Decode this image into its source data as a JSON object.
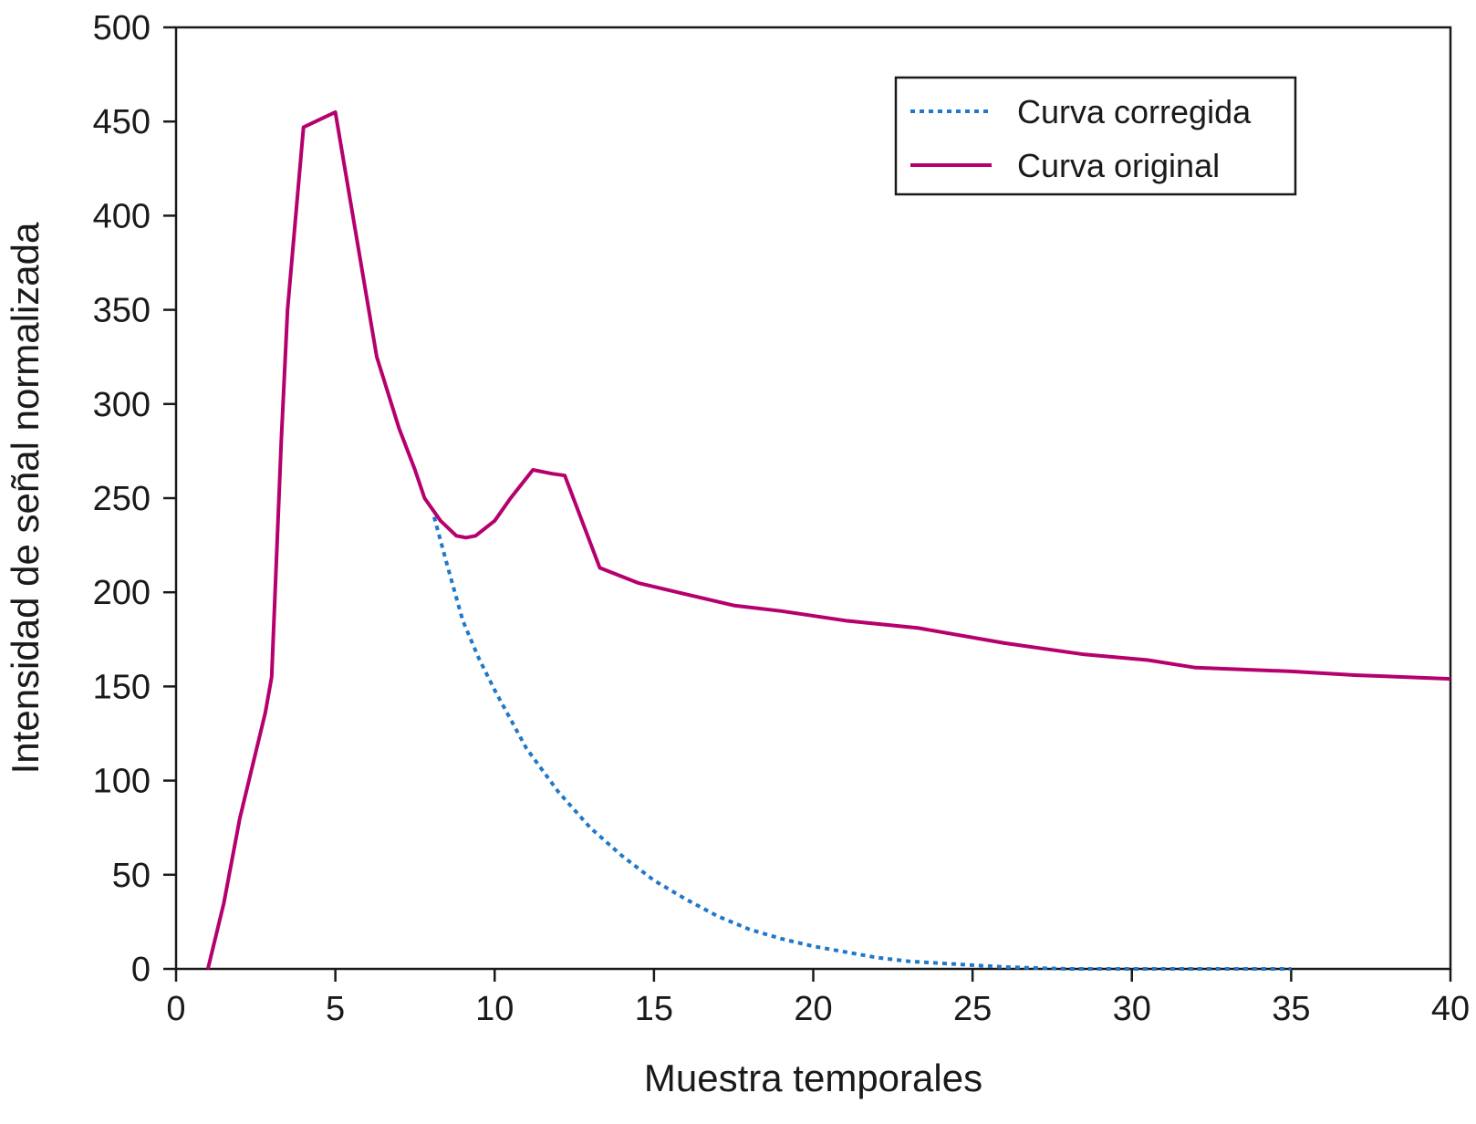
{
  "chart_data": {
    "type": "line",
    "title": "",
    "xlabel": "Muestra temporales",
    "ylabel": "Intensidad de señal normalizada",
    "xlim": [
      0,
      40
    ],
    "ylim": [
      0,
      500
    ],
    "xticks": [
      0,
      5,
      10,
      15,
      20,
      25,
      30,
      35,
      40
    ],
    "yticks": [
      0,
      50,
      100,
      150,
      200,
      250,
      300,
      350,
      400,
      450,
      500
    ],
    "grid": false,
    "legend_position": "top-right",
    "series": [
      {
        "name": "Curva corregida",
        "color": "#1f78c8",
        "style": "dotted",
        "x": [
          8.1,
          8.5,
          9,
          9.5,
          10,
          11,
          12,
          13,
          14,
          15,
          16,
          17,
          18,
          19,
          20,
          21,
          22,
          23,
          24,
          25,
          26,
          27,
          28,
          30,
          32,
          35
        ],
        "y": [
          240,
          215,
          185,
          165,
          148,
          117,
          94,
          75,
          60,
          47,
          37,
          28,
          21,
          16,
          12,
          9,
          6,
          4,
          3,
          2,
          1,
          0.5,
          0,
          0,
          0,
          0
        ]
      },
      {
        "name": "Curva original",
        "color": "#b5006e",
        "style": "solid",
        "x": [
          1,
          1.5,
          2,
          2.8,
          3,
          3.3,
          3.5,
          4,
          5,
          6.3,
          7,
          7.5,
          7.8,
          8.3,
          8.8,
          9.1,
          9.4,
          10,
          10.5,
          11.2,
          11.8,
          12.2,
          13.3,
          14.5,
          16,
          17.5,
          19,
          21,
          23.3,
          26,
          28.5,
          30.5,
          32,
          35,
          37,
          40
        ],
        "y": [
          0,
          35,
          80,
          136,
          155,
          280,
          350,
          447,
          455,
          325,
          287,
          265,
          250,
          238,
          230,
          229,
          230,
          238,
          250,
          265,
          263,
          262,
          213,
          205,
          199,
          193,
          190,
          185,
          181,
          173,
          167,
          164,
          160,
          158,
          156,
          154
        ]
      }
    ]
  }
}
